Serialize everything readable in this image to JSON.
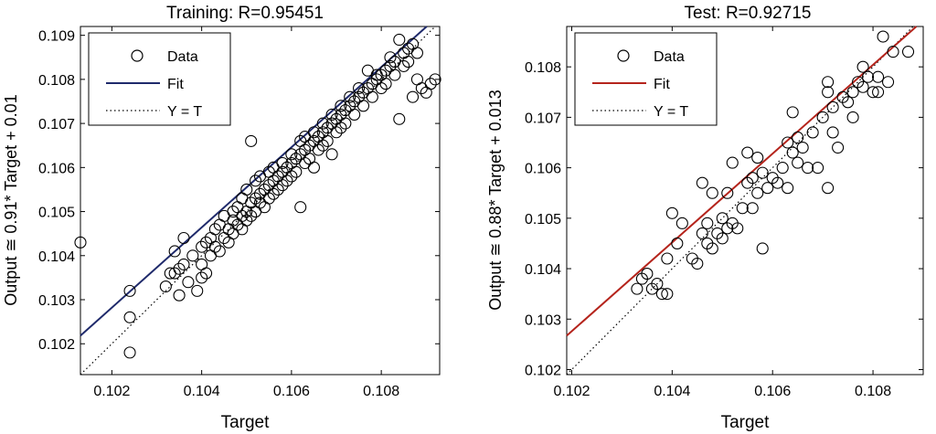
{
  "chart_data": [
    {
      "type": "scatter",
      "title": "Training: R=0.95451",
      "xlabel": "Target",
      "ylabel": "Output ≅ 0.91* Target + 0.01",
      "xlim": [
        0.1013,
        0.1093
      ],
      "ylim": [
        0.1013,
        0.1092
      ],
      "xticks": [
        0.102,
        0.104,
        0.106,
        0.108
      ],
      "xtick_labels": [
        "0.102",
        "0.104",
        "0.106",
        "0.108"
      ],
      "yticks": [
        0.102,
        0.103,
        0.104,
        0.105,
        0.106,
        0.107,
        0.108,
        0.109
      ],
      "ytick_labels": [
        "0.102",
        "0.103",
        "0.104",
        "0.105",
        "0.106",
        "0.107",
        "0.108",
        "0.109"
      ],
      "fit": {
        "slope": 0.91,
        "intercept": 0.01
      },
      "fit_color": "#1f2a6b",
      "legend": {
        "position": "top-left",
        "data_label": "Data",
        "fit_label": "Fit",
        "ideal_label": "Y = T"
      },
      "points": [
        [
          0.1013,
          0.1043
        ],
        [
          0.1024,
          0.1026
        ],
        [
          0.1024,
          0.1032
        ],
        [
          0.1024,
          0.1018
        ],
        [
          0.1032,
          0.1033
        ],
        [
          0.1033,
          0.1036
        ],
        [
          0.1034,
          0.1036
        ],
        [
          0.1034,
          0.1041
        ],
        [
          0.1035,
          0.1037
        ],
        [
          0.1035,
          0.1031
        ],
        [
          0.1036,
          0.1038
        ],
        [
          0.1036,
          0.1044
        ],
        [
          0.1037,
          0.1034
        ],
        [
          0.1038,
          0.104
        ],
        [
          0.1039,
          0.1032
        ],
        [
          0.104,
          0.1035
        ],
        [
          0.104,
          0.1038
        ],
        [
          0.104,
          0.1042
        ],
        [
          0.1041,
          0.1043
        ],
        [
          0.1041,
          0.1036
        ],
        [
          0.1042,
          0.1044
        ],
        [
          0.1042,
          0.104
        ],
        [
          0.1043,
          0.1046
        ],
        [
          0.1043,
          0.1042
        ],
        [
          0.1044,
          0.1047
        ],
        [
          0.1044,
          0.1041
        ],
        [
          0.1045,
          0.1044
        ],
        [
          0.1045,
          0.1049
        ],
        [
          0.1046,
          0.1046
        ],
        [
          0.1046,
          0.1043
        ],
        [
          0.1047,
          0.1048
        ],
        [
          0.1047,
          0.105
        ],
        [
          0.1047,
          0.1045
        ],
        [
          0.1048,
          0.1051
        ],
        [
          0.1048,
          0.1047
        ],
        [
          0.1049,
          0.1049
        ],
        [
          0.1049,
          0.1053
        ],
        [
          0.1049,
          0.1046
        ],
        [
          0.105,
          0.105
        ],
        [
          0.105,
          0.1055
        ],
        [
          0.105,
          0.1048
        ],
        [
          0.1051,
          0.1052
        ],
        [
          0.1051,
          0.1066
        ],
        [
          0.1051,
          0.1049
        ],
        [
          0.1052,
          0.1053
        ],
        [
          0.1052,
          0.1057
        ],
        [
          0.1052,
          0.105
        ],
        [
          0.1053,
          0.1054
        ],
        [
          0.1053,
          0.1052
        ],
        [
          0.1053,
          0.1058
        ],
        [
          0.1054,
          0.1055
        ],
        [
          0.1054,
          0.1051
        ],
        [
          0.1055,
          0.1056
        ],
        [
          0.1055,
          0.1059
        ],
        [
          0.1055,
          0.1053
        ],
        [
          0.1056,
          0.1057
        ],
        [
          0.1056,
          0.1054
        ],
        [
          0.1056,
          0.106
        ],
        [
          0.1057,
          0.1058
        ],
        [
          0.1057,
          0.1055
        ],
        [
          0.1058,
          0.1059
        ],
        [
          0.1058,
          0.1061
        ],
        [
          0.1058,
          0.1056
        ],
        [
          0.1059,
          0.106
        ],
        [
          0.1059,
          0.1057
        ],
        [
          0.106,
          0.1061
        ],
        [
          0.106,
          0.1063
        ],
        [
          0.106,
          0.1058
        ],
        [
          0.1061,
          0.1062
        ],
        [
          0.1061,
          0.1059
        ],
        [
          0.1062,
          0.1063
        ],
        [
          0.1062,
          0.1066
        ],
        [
          0.1062,
          0.1051
        ],
        [
          0.1063,
          0.1064
        ],
        [
          0.1063,
          0.1061
        ],
        [
          0.1063,
          0.1067
        ],
        [
          0.1064,
          0.1065
        ],
        [
          0.1064,
          0.1062
        ],
        [
          0.1065,
          0.1066
        ],
        [
          0.1065,
          0.1068
        ],
        [
          0.1065,
          0.106
        ],
        [
          0.1066,
          0.1067
        ],
        [
          0.1066,
          0.1064
        ],
        [
          0.1067,
          0.1068
        ],
        [
          0.1067,
          0.107
        ],
        [
          0.1067,
          0.1065
        ],
        [
          0.1068,
          0.1069
        ],
        [
          0.1068,
          0.1066
        ],
        [
          0.1069,
          0.107
        ],
        [
          0.1069,
          0.1072
        ],
        [
          0.1069,
          0.1063
        ],
        [
          0.107,
          0.1071
        ],
        [
          0.107,
          0.1068
        ],
        [
          0.1071,
          0.1072
        ],
        [
          0.1071,
          0.1074
        ],
        [
          0.1071,
          0.1069
        ],
        [
          0.1072,
          0.1073
        ],
        [
          0.1072,
          0.107
        ],
        [
          0.1073,
          0.1074
        ],
        [
          0.1073,
          0.1076
        ],
        [
          0.1074,
          0.1075
        ],
        [
          0.1074,
          0.1072
        ],
        [
          0.1075,
          0.1076
        ],
        [
          0.1075,
          0.1078
        ],
        [
          0.1076,
          0.1077
        ],
        [
          0.1076,
          0.1074
        ],
        [
          0.1077,
          0.1078
        ],
        [
          0.1077,
          0.1082
        ],
        [
          0.1078,
          0.1079
        ],
        [
          0.1078,
          0.1076
        ],
        [
          0.1079,
          0.108
        ],
        [
          0.1079,
          0.1081
        ],
        [
          0.108,
          0.1081
        ],
        [
          0.108,
          0.1078
        ],
        [
          0.1081,
          0.1082
        ],
        [
          0.1081,
          0.1079
        ],
        [
          0.1082,
          0.1083
        ],
        [
          0.1082,
          0.1085
        ],
        [
          0.1083,
          0.1084
        ],
        [
          0.1083,
          0.1081
        ],
        [
          0.1084,
          0.1089
        ],
        [
          0.1084,
          0.1071
        ],
        [
          0.1085,
          0.1086
        ],
        [
          0.1085,
          0.1083
        ],
        [
          0.1086,
          0.1087
        ],
        [
          0.1086,
          0.1084
        ],
        [
          0.1087,
          0.1088
        ],
        [
          0.1087,
          0.1076
        ],
        [
          0.1088,
          0.1086
        ],
        [
          0.1088,
          0.108
        ],
        [
          0.1089,
          0.1078
        ],
        [
          0.109,
          0.1077
        ],
        [
          0.1091,
          0.1079
        ],
        [
          0.1092,
          0.108
        ]
      ]
    },
    {
      "type": "scatter",
      "title": "Test: R=0.92715",
      "xlabel": "Target",
      "ylabel": "Output ≅ 0.88* Target + 0.013",
      "xlim": [
        0.1019,
        0.109
      ],
      "ylim": [
        0.1019,
        0.1088
      ],
      "xticks": [
        0.102,
        0.104,
        0.106,
        0.108
      ],
      "xtick_labels": [
        "0.102",
        "0.104",
        "0.106",
        "0.108"
      ],
      "yticks": [
        0.102,
        0.103,
        0.104,
        0.105,
        0.106,
        0.107,
        0.108
      ],
      "ytick_labels": [
        "0.102",
        "0.103",
        "0.104",
        "0.105",
        "0.106",
        "0.107",
        "0.108"
      ],
      "fit": {
        "slope": 0.88,
        "intercept": 0.013
      },
      "fit_color": "#b5241c",
      "legend": {
        "position": "top-left",
        "data_label": "Data",
        "fit_label": "Fit",
        "ideal_label": "Y = T"
      },
      "points": [
        [
          0.1033,
          0.1036
        ],
        [
          0.1034,
          0.1038
        ],
        [
          0.1035,
          0.1039
        ],
        [
          0.1036,
          0.1036
        ],
        [
          0.1037,
          0.1037
        ],
        [
          0.1038,
          0.1035
        ],
        [
          0.1039,
          0.1035
        ],
        [
          0.1039,
          0.1042
        ],
        [
          0.104,
          0.1051
        ],
        [
          0.1041,
          0.1045
        ],
        [
          0.1042,
          0.1049
        ],
        [
          0.1044,
          0.1042
        ],
        [
          0.1045,
          0.1041
        ],
        [
          0.1046,
          0.1047
        ],
        [
          0.1046,
          0.1057
        ],
        [
          0.1047,
          0.1049
        ],
        [
          0.1047,
          0.1045
        ],
        [
          0.1048,
          0.1055
        ],
        [
          0.1048,
          0.1044
        ],
        [
          0.1049,
          0.1047
        ],
        [
          0.105,
          0.105
        ],
        [
          0.105,
          0.1046
        ],
        [
          0.1051,
          0.1048
        ],
        [
          0.1051,
          0.1055
        ],
        [
          0.1052,
          0.1049
        ],
        [
          0.1052,
          0.1061
        ],
        [
          0.1053,
          0.1048
        ],
        [
          0.1054,
          0.1052
        ],
        [
          0.1055,
          0.1057
        ],
        [
          0.1055,
          0.1063
        ],
        [
          0.1056,
          0.1052
        ],
        [
          0.1056,
          0.1058
        ],
        [
          0.1057,
          0.1055
        ],
        [
          0.1057,
          0.1062
        ],
        [
          0.1058,
          0.1044
        ],
        [
          0.1058,
          0.1059
        ],
        [
          0.1059,
          0.1056
        ],
        [
          0.106,
          0.1058
        ],
        [
          0.1061,
          0.1057
        ],
        [
          0.1062,
          0.106
        ],
        [
          0.1063,
          0.1065
        ],
        [
          0.1063,
          0.1056
        ],
        [
          0.1064,
          0.1063
        ],
        [
          0.1064,
          0.1071
        ],
        [
          0.1065,
          0.1061
        ],
        [
          0.1065,
          0.1066
        ],
        [
          0.1066,
          0.1064
        ],
        [
          0.1067,
          0.106
        ],
        [
          0.1068,
          0.1067
        ],
        [
          0.1069,
          0.106
        ],
        [
          0.107,
          0.107
        ],
        [
          0.1071,
          0.1075
        ],
        [
          0.1071,
          0.1077
        ],
        [
          0.1071,
          0.1056
        ],
        [
          0.1072,
          0.1067
        ],
        [
          0.1072,
          0.1072
        ],
        [
          0.1073,
          0.1064
        ],
        [
          0.1074,
          0.1074
        ],
        [
          0.1075,
          0.1073
        ],
        [
          0.1076,
          0.1075
        ],
        [
          0.1076,
          0.107
        ],
        [
          0.1077,
          0.1077
        ],
        [
          0.1078,
          0.1076
        ],
        [
          0.1078,
          0.108
        ],
        [
          0.1079,
          0.1078
        ],
        [
          0.108,
          0.1075
        ],
        [
          0.1081,
          0.1078
        ],
        [
          0.1081,
          0.1075
        ],
        [
          0.1082,
          0.1086
        ],
        [
          0.1083,
          0.1077
        ],
        [
          0.1084,
          0.1083
        ],
        [
          0.1087,
          0.1083
        ]
      ]
    }
  ]
}
